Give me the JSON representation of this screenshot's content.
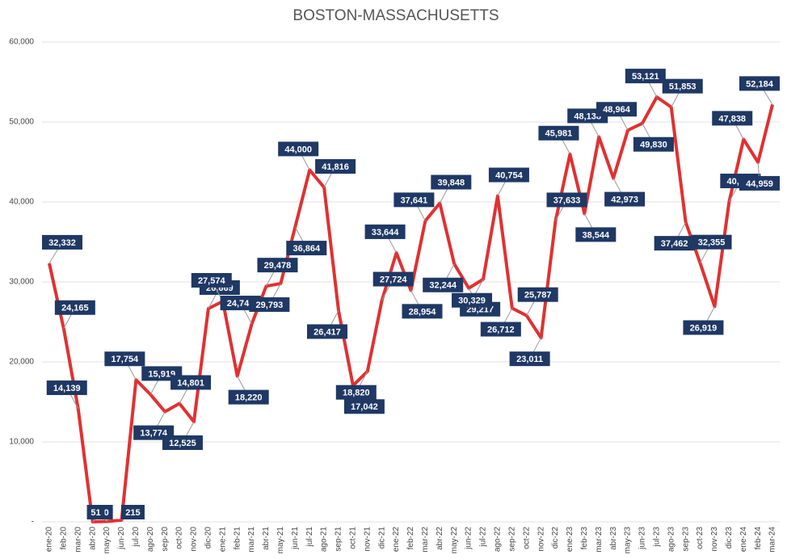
{
  "chart_data": {
    "type": "line",
    "title": "BOSTON-MASSACHUSETTS",
    "categories": [
      "ene-20",
      "feb-20",
      "mar-20",
      "abr-20",
      "may-20",
      "jun-20",
      "jul-20",
      "ago-20",
      "sep-20",
      "oct-20",
      "nov-20",
      "dic-20",
      "ene-21",
      "feb-21",
      "mar-21",
      "abr-21",
      "may-21",
      "jun-21",
      "jul-21",
      "ago-21",
      "sep-21",
      "oct-21",
      "nov-21",
      "dic-21",
      "ene-22",
      "feb-22",
      "mar-22",
      "abr-22",
      "may-22",
      "jun-22",
      "jul-22",
      "ago-22",
      "sep-22",
      "oct-22",
      "nov-22",
      "dic-22",
      "ene-23",
      "feb-23",
      "mar-23",
      "abr-23",
      "may-23",
      "jun-23",
      "jul-23",
      "ago-23",
      "sep-23",
      "oct-23",
      "nov-23",
      "dic-23",
      "ene-24",
      "feb-24",
      "mar-24"
    ],
    "values": [
      32332,
      24165,
      14139,
      10,
      51,
      215,
      17754,
      15919,
      13774,
      14801,
      12525,
      26669,
      27574,
      18220,
      24742,
      29478,
      29793,
      36864,
      44000,
      41816,
      26417,
      17042,
      18820,
      27724,
      33644,
      28954,
      37641,
      39848,
      32244,
      29217,
      30329,
      40754,
      26712,
      25787,
      23011,
      37633,
      45981,
      38544,
      48138,
      42973,
      48964,
      49830,
      53121,
      51853,
      37462,
      32355,
      26919,
      40002,
      47838,
      44959,
      52184
    ],
    "value_labels": [
      "32,332",
      "24,165",
      "14,139",
      "10",
      "51",
      "215",
      "17,754",
      "15,919",
      "13,774",
      "14,801",
      "12,525",
      "26,669",
      "27,574",
      "18,220",
      "24,742",
      "29,478",
      "29,793",
      "36,864",
      "44,000",
      "41,816",
      "26,417",
      "17,042",
      "18,820",
      "27,724",
      "33,644",
      "28,954",
      "37,641",
      "39,848",
      "32,244",
      "29,217",
      "30,329",
      "40,754",
      "26,712",
      "25,787",
      "23,011",
      "37,633",
      "45,981",
      "38,544",
      "48,138",
      "42,973",
      "48,964",
      "49,830",
      "53,121",
      "51,853",
      "37,462",
      "32,355",
      "26,919",
      "40,002",
      "47,838",
      "44,959",
      "52,184"
    ],
    "color": "#e03131",
    "ylim": [
      0,
      60000
    ],
    "yticks": [
      {
        "value": 0,
        "label": "-"
      },
      {
        "value": 10000,
        "label": "10,000"
      },
      {
        "value": 20000,
        "label": "20,000"
      },
      {
        "value": 30000,
        "label": "30,000"
      },
      {
        "value": 40000,
        "label": "40,000"
      },
      {
        "value": 50000,
        "label": "50,000"
      },
      {
        "value": 60000,
        "label": "60,000"
      }
    ],
    "grid": true
  }
}
